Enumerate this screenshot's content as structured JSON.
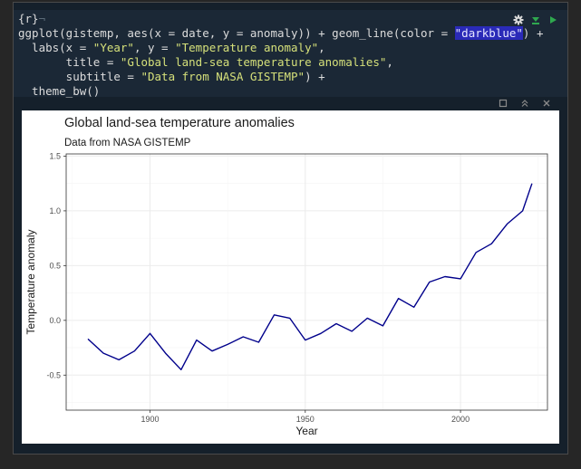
{
  "code": {
    "chunk_header": "{r}",
    "lines": [
      [
        "ggplot(gistemp, aes(x = date, y = anomaly)) + geom_line(color = ",
        "\"darkblue\"",
        ") +"
      ],
      [
        "  labs(x = ",
        "\"Year\"",
        ", y = ",
        "\"Temperature anomaly\"",
        ","
      ],
      [
        "       title = ",
        "\"Global land-sea temperature anomalies\"",
        ","
      ],
      [
        "       subtitle = ",
        "\"Data from NASA GISTEMP\"",
        ") +"
      ],
      [
        "  theme_bw()"
      ]
    ]
  },
  "chunk_tools": {
    "settings_icon": "gear-icon",
    "run_previous_icon": "run-previous-icon",
    "run_icon": "play-icon"
  },
  "output_tools": [
    "expand-icon",
    "collapse-icon",
    "close-icon"
  ],
  "colors": {
    "line": "#00008b",
    "editor_bg": "#15202b",
    "string": "#d5e07a",
    "paren": "#ea8ea0"
  },
  "chart_data": {
    "type": "line",
    "title": "Global land-sea temperature anomalies",
    "subtitle": "Data from NASA GISTEMP",
    "xlabel": "Year",
    "ylabel": "Temperature anomaly",
    "xlim": [
      1873,
      2028
    ],
    "ylim": [
      -0.82,
      1.52
    ],
    "xticks": [
      1900,
      1950,
      2000
    ],
    "yticks": [
      1.5,
      1.0,
      0.5,
      0.0,
      -0.5
    ],
    "ytick_labels": [
      "1.5",
      "1.0",
      "0.5",
      "0.0",
      "-0.5"
    ],
    "grid": true,
    "legend": "none",
    "series": [
      {
        "x": [
          1880,
          1885,
          1890,
          1895,
          1900,
          1905,
          1910,
          1915,
          1920,
          1925,
          1930,
          1935,
          1940,
          1945,
          1950,
          1955,
          1960,
          1965,
          1970,
          1975,
          1980,
          1985,
          1990,
          1995,
          2000,
          2005,
          2010,
          2015,
          2020,
          2023
        ],
        "y": [
          -0.17,
          -0.3,
          -0.36,
          -0.28,
          -0.12,
          -0.3,
          -0.45,
          -0.18,
          -0.28,
          -0.22,
          -0.15,
          -0.2,
          0.05,
          0.02,
          -0.18,
          -0.12,
          -0.03,
          -0.1,
          0.02,
          -0.05,
          0.2,
          0.12,
          0.35,
          0.4,
          0.38,
          0.62,
          0.7,
          0.88,
          1.0,
          1.25
        ]
      }
    ]
  }
}
